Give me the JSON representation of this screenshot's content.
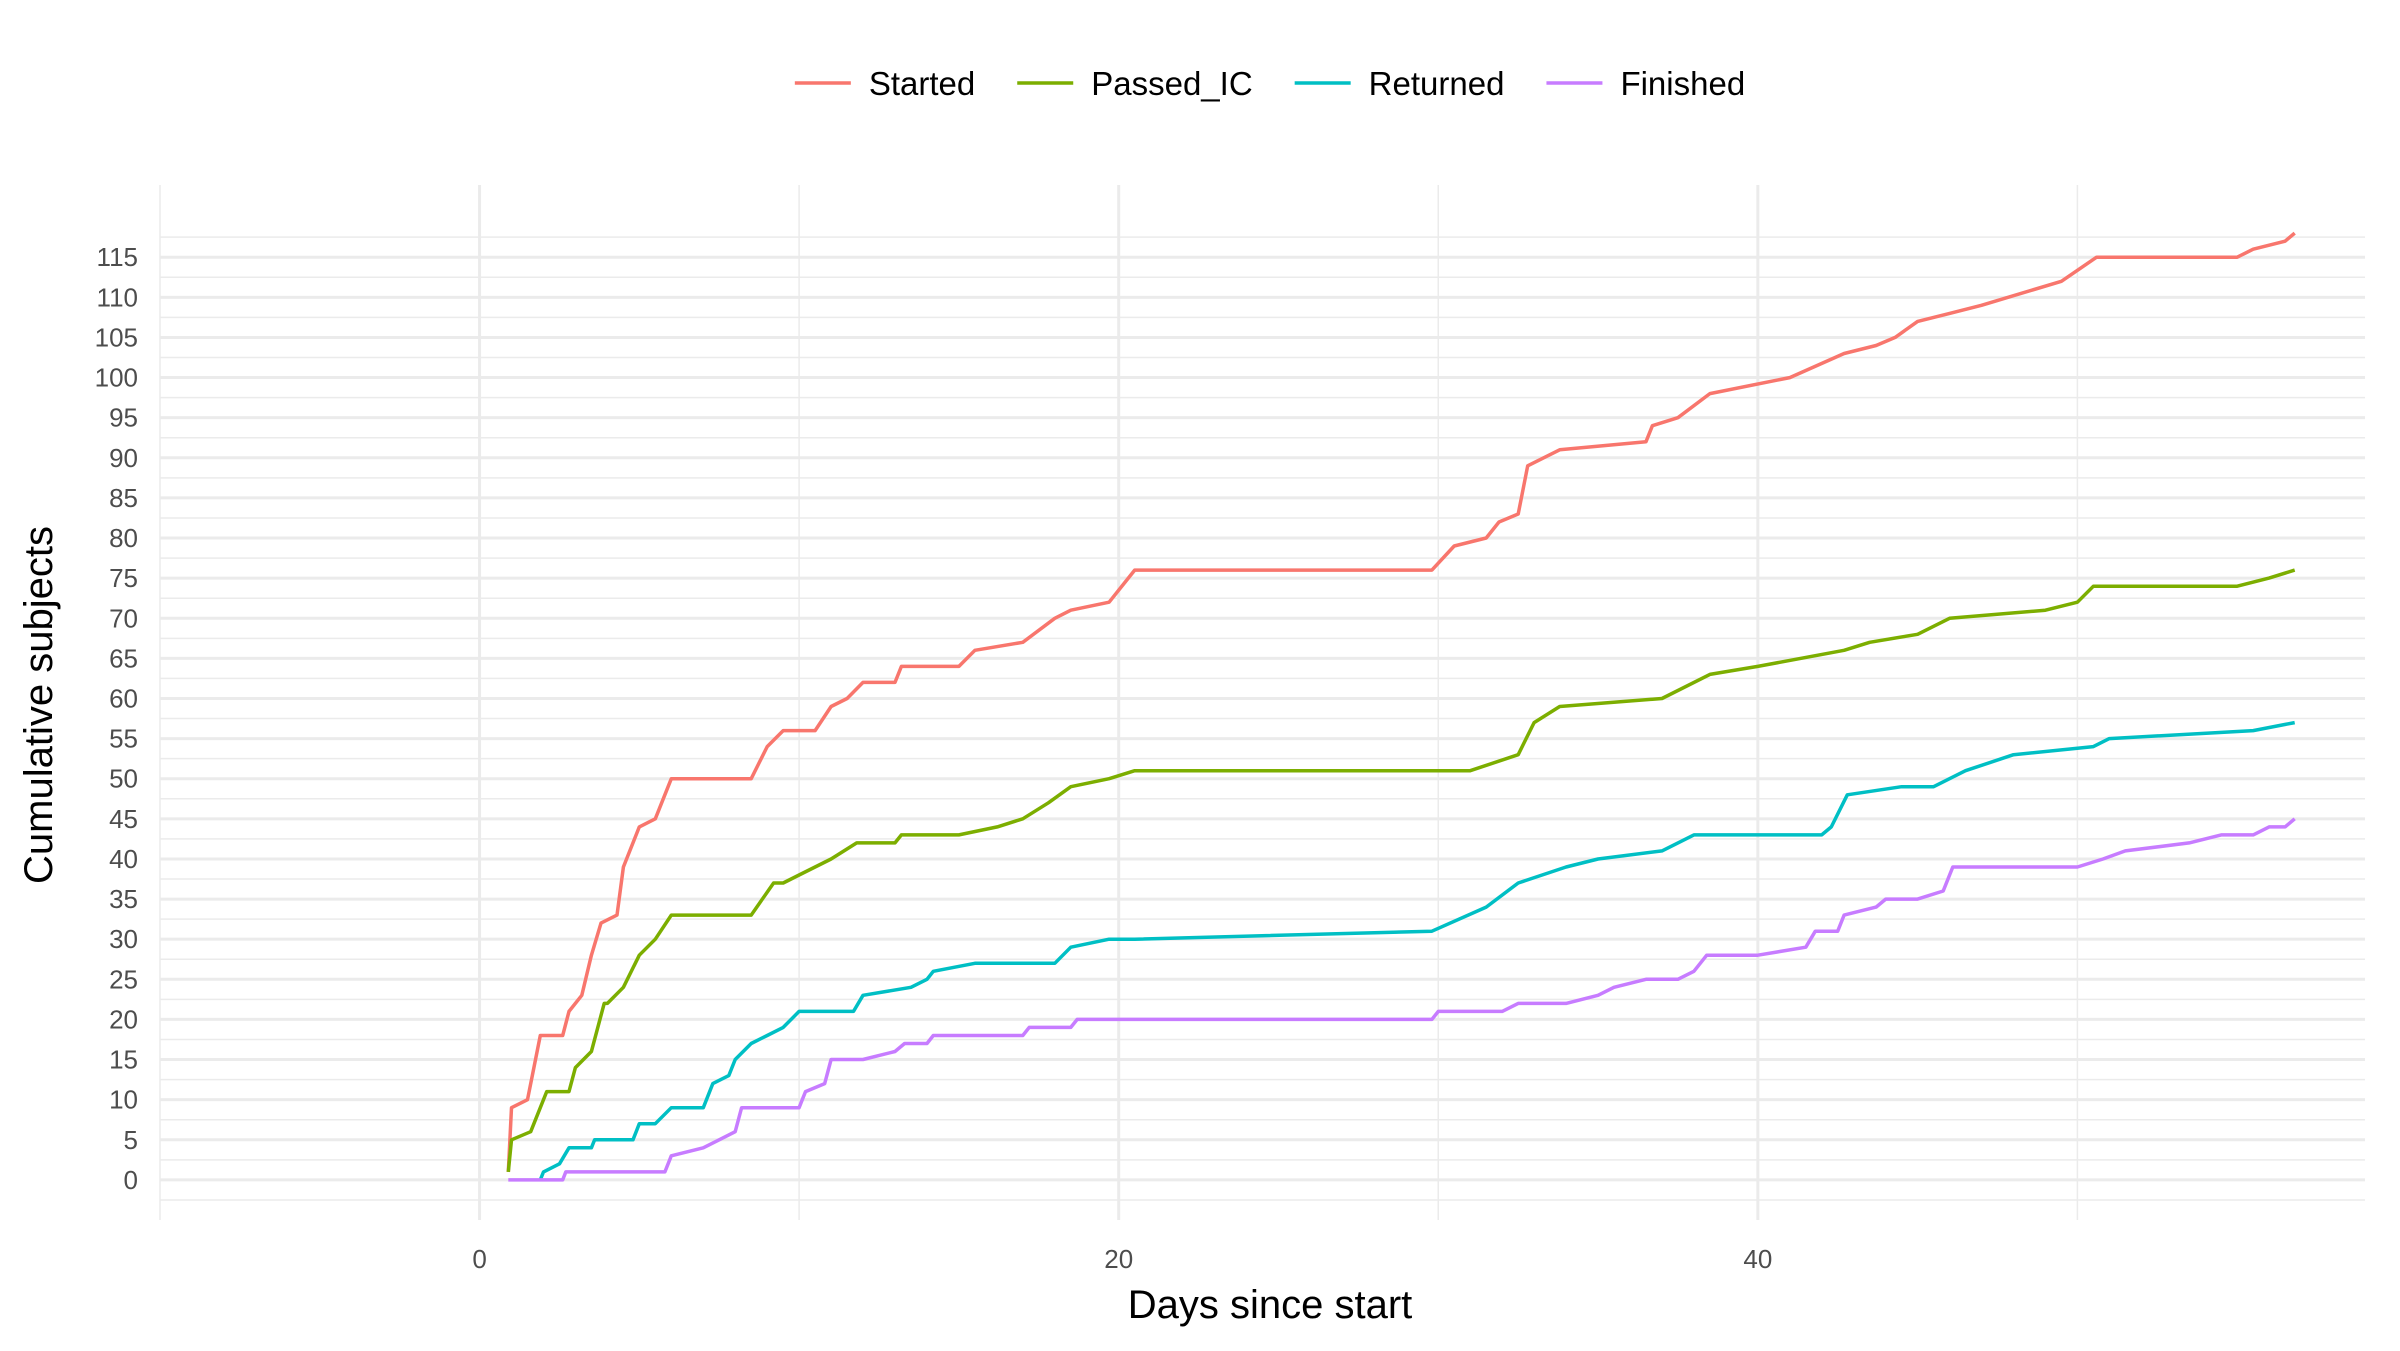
{
  "chart_data": {
    "type": "line",
    "title": "",
    "xlabel": "Days since start",
    "ylabel": "Cumulative subjects",
    "xlim": [
      -10,
      59
    ],
    "ylim": [
      -5,
      124
    ],
    "x_ticks": [
      0,
      20,
      40
    ],
    "y_ticks": [
      0,
      5,
      10,
      15,
      20,
      25,
      30,
      35,
      40,
      45,
      50,
      55,
      60,
      65,
      70,
      75,
      80,
      85,
      90,
      95,
      100,
      105,
      110,
      115
    ],
    "grid": true,
    "legend_position": "top",
    "series": [
      {
        "name": "Started",
        "color": "#F8766D",
        "points": [
          [
            0.9,
            1
          ],
          [
            1,
            9
          ],
          [
            1.5,
            10
          ],
          [
            1.7,
            14
          ],
          [
            1.9,
            18
          ],
          [
            2.6,
            18
          ],
          [
            2.8,
            21
          ],
          [
            3.2,
            23
          ],
          [
            3.5,
            28
          ],
          [
            3.8,
            32
          ],
          [
            4.3,
            33
          ],
          [
            4.5,
            39
          ],
          [
            5,
            44
          ],
          [
            5.5,
            45
          ],
          [
            6,
            50
          ],
          [
            8.5,
            50
          ],
          [
            9,
            54
          ],
          [
            9.5,
            56
          ],
          [
            10.5,
            56
          ],
          [
            11,
            59
          ],
          [
            11.5,
            60
          ],
          [
            12,
            62
          ],
          [
            13,
            62
          ],
          [
            13.2,
            64
          ],
          [
            15,
            64
          ],
          [
            15.5,
            66
          ],
          [
            17,
            67
          ],
          [
            18,
            70
          ],
          [
            18.5,
            71
          ],
          [
            19.7,
            72
          ],
          [
            20.5,
            76
          ],
          [
            29.8,
            76
          ],
          [
            30.5,
            79
          ],
          [
            31.5,
            80
          ],
          [
            31.9,
            82
          ],
          [
            32.5,
            83
          ],
          [
            32.8,
            89
          ],
          [
            33.8,
            91
          ],
          [
            36.5,
            92
          ],
          [
            36.7,
            94
          ],
          [
            37.5,
            95
          ],
          [
            38.5,
            98
          ],
          [
            41,
            100
          ],
          [
            42.7,
            103
          ],
          [
            43.7,
            104
          ],
          [
            44.3,
            105
          ],
          [
            45,
            107
          ],
          [
            46,
            108
          ],
          [
            47,
            109
          ],
          [
            49.5,
            112
          ],
          [
            50.6,
            115
          ],
          [
            55,
            115
          ],
          [
            55.5,
            116
          ],
          [
            56.5,
            117
          ],
          [
            56.8,
            118
          ]
        ]
      },
      {
        "name": "Passed_IC",
        "color": "#7CAE00",
        "points": [
          [
            0.9,
            1
          ],
          [
            1,
            5
          ],
          [
            1.6,
            6
          ],
          [
            2.1,
            11
          ],
          [
            2.8,
            11
          ],
          [
            3,
            14
          ],
          [
            3.5,
            16
          ],
          [
            3.9,
            22
          ],
          [
            4,
            22
          ],
          [
            4.5,
            24
          ],
          [
            5,
            28
          ],
          [
            5.5,
            30
          ],
          [
            6,
            33
          ],
          [
            8.5,
            33
          ],
          [
            9.2,
            37
          ],
          [
            9.5,
            37
          ],
          [
            10,
            38
          ],
          [
            11,
            40
          ],
          [
            11.8,
            42
          ],
          [
            13,
            42
          ],
          [
            13.2,
            43
          ],
          [
            15,
            43
          ],
          [
            16.2,
            44
          ],
          [
            17,
            45
          ],
          [
            17.8,
            47
          ],
          [
            18.5,
            49
          ],
          [
            19.7,
            50
          ],
          [
            20.5,
            51
          ],
          [
            29.8,
            51
          ],
          [
            31,
            51
          ],
          [
            32.5,
            53
          ],
          [
            33,
            57
          ],
          [
            33.8,
            59
          ],
          [
            37,
            60
          ],
          [
            38.5,
            63
          ],
          [
            40,
            64
          ],
          [
            42.7,
            66
          ],
          [
            43.5,
            67
          ],
          [
            45,
            68
          ],
          [
            45.5,
            69
          ],
          [
            46,
            70
          ],
          [
            49,
            71
          ],
          [
            50,
            72
          ],
          [
            50.5,
            74
          ],
          [
            55,
            74
          ],
          [
            56,
            75
          ],
          [
            56.8,
            76
          ]
        ]
      },
      {
        "name": "Returned",
        "color": "#00BFC4",
        "points": [
          [
            1.9,
            0
          ],
          [
            2,
            1
          ],
          [
            2.5,
            2
          ],
          [
            2.8,
            4
          ],
          [
            3.5,
            4
          ],
          [
            3.6,
            5
          ],
          [
            4.8,
            5
          ],
          [
            5,
            7
          ],
          [
            5.5,
            7
          ],
          [
            6,
            9
          ],
          [
            7,
            9
          ],
          [
            7.3,
            12
          ],
          [
            7.8,
            13
          ],
          [
            8,
            15
          ],
          [
            8.5,
            17
          ],
          [
            9,
            18
          ],
          [
            9.5,
            19
          ],
          [
            10,
            21
          ],
          [
            11.7,
            21
          ],
          [
            12,
            23
          ],
          [
            13.5,
            24
          ],
          [
            14,
            25
          ],
          [
            14.2,
            26
          ],
          [
            15.5,
            27
          ],
          [
            18,
            27
          ],
          [
            18.5,
            29
          ],
          [
            19.7,
            30
          ],
          [
            20.5,
            30
          ],
          [
            29.8,
            31
          ],
          [
            31.5,
            34
          ],
          [
            32.5,
            37
          ],
          [
            34,
            39
          ],
          [
            35,
            40
          ],
          [
            37,
            41
          ],
          [
            38,
            43
          ],
          [
            42,
            43
          ],
          [
            42.3,
            44
          ],
          [
            42.8,
            48
          ],
          [
            44.5,
            49
          ],
          [
            45.5,
            49
          ],
          [
            46.5,
            51
          ],
          [
            48,
            53
          ],
          [
            50.5,
            54
          ],
          [
            51,
            55
          ],
          [
            55.5,
            56
          ],
          [
            56.8,
            57
          ]
        ]
      },
      {
        "name": "Finished",
        "color": "#C77CFF",
        "points": [
          [
            0.9,
            0
          ],
          [
            2.6,
            0
          ],
          [
            2.7,
            1
          ],
          [
            5.8,
            1
          ],
          [
            6,
            3
          ],
          [
            7,
            4
          ],
          [
            7.5,
            5
          ],
          [
            8,
            6
          ],
          [
            8.2,
            9
          ],
          [
            10,
            9
          ],
          [
            10.2,
            11
          ],
          [
            10.8,
            12
          ],
          [
            11,
            15
          ],
          [
            12,
            15
          ],
          [
            13,
            16
          ],
          [
            13.3,
            17
          ],
          [
            14,
            17
          ],
          [
            14.2,
            18
          ],
          [
            17,
            18
          ],
          [
            17.2,
            19
          ],
          [
            18.5,
            19
          ],
          [
            18.7,
            20
          ],
          [
            29.8,
            20
          ],
          [
            30,
            21
          ],
          [
            32,
            21
          ],
          [
            32.5,
            22
          ],
          [
            34,
            22
          ],
          [
            35,
            23
          ],
          [
            35.5,
            24
          ],
          [
            36.5,
            25
          ],
          [
            37.5,
            25
          ],
          [
            38,
            26
          ],
          [
            38.4,
            28
          ],
          [
            40,
            28
          ],
          [
            41.5,
            29
          ],
          [
            41.8,
            31
          ],
          [
            42.5,
            31
          ],
          [
            42.7,
            33
          ],
          [
            43.7,
            34
          ],
          [
            44,
            35
          ],
          [
            45,
            35
          ],
          [
            45.8,
            36
          ],
          [
            46,
            38
          ],
          [
            46.1,
            39
          ],
          [
            49,
            39
          ],
          [
            50,
            39
          ],
          [
            50.8,
            40
          ],
          [
            51.5,
            41
          ],
          [
            53.5,
            42
          ],
          [
            54.5,
            43
          ],
          [
            55.5,
            43
          ],
          [
            56,
            44
          ],
          [
            56.5,
            44
          ],
          [
            56.8,
            45
          ]
        ]
      }
    ]
  }
}
